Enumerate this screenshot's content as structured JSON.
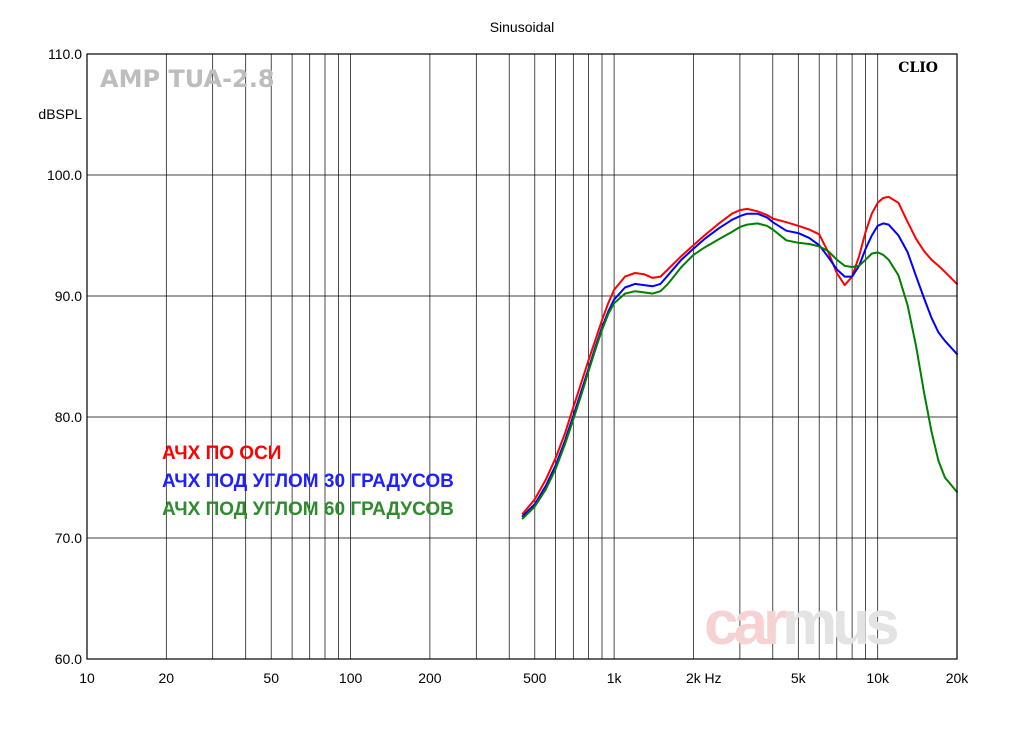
{
  "chart_data": {
    "type": "line",
    "title": "Sinusoidal",
    "ylabel": "dBSPL",
    "xlabel": "Hz",
    "x_scale": "log",
    "xlim": [
      10,
      20000
    ],
    "ylim": [
      60,
      110
    ],
    "grid": true,
    "x_ticks": [
      {
        "value": 10,
        "label": "10"
      },
      {
        "value": 20,
        "label": "20"
      },
      {
        "value": 50,
        "label": "50"
      },
      {
        "value": 100,
        "label": "100"
      },
      {
        "value": 200,
        "label": "200"
      },
      {
        "value": 500,
        "label": "500"
      },
      {
        "value": 1000,
        "label": "1k"
      },
      {
        "value": 2000,
        "label": "2k"
      },
      {
        "value": 5000,
        "label": "5k"
      },
      {
        "value": 10000,
        "label": "10k"
      },
      {
        "value": 20000,
        "label": "20k"
      }
    ],
    "y_ticks": [
      {
        "value": 60,
        "label": "60.0"
      },
      {
        "value": 70,
        "label": "70.0"
      },
      {
        "value": 80,
        "label": "80.0"
      },
      {
        "value": 90,
        "label": "90.0"
      },
      {
        "value": 100,
        "label": "100.0"
      },
      {
        "value": 110,
        "label": "110.0"
      }
    ],
    "series": [
      {
        "name": "АЧХ ПО ОСИ",
        "color": "#ff0000",
        "x": [
          450,
          500,
          550,
          600,
          650,
          700,
          750,
          800,
          850,
          900,
          950,
          1000,
          1100,
          1200,
          1300,
          1400,
          1500,
          1600,
          1800,
          2000,
          2200,
          2500,
          2800,
          3000,
          3200,
          3500,
          3800,
          4000,
          4500,
          5000,
          5500,
          6000,
          6500,
          7000,
          7500,
          8000,
          8500,
          9000,
          9500,
          10000,
          10500,
          11000,
          12000,
          13000,
          14000,
          15000,
          16000,
          17000,
          18000,
          20000
        ],
        "y": [
          72.0,
          73.2,
          74.8,
          76.6,
          78.6,
          80.8,
          82.8,
          84.7,
          86.4,
          88.0,
          89.4,
          90.5,
          91.6,
          91.9,
          91.8,
          91.5,
          91.6,
          92.2,
          93.3,
          94.2,
          95.0,
          96.0,
          96.8,
          97.1,
          97.2,
          97.0,
          96.7,
          96.4,
          96.1,
          95.8,
          95.5,
          95.1,
          93.6,
          91.9,
          90.9,
          91.6,
          93.3,
          95.3,
          96.8,
          97.7,
          98.1,
          98.2,
          97.7,
          96.1,
          94.7,
          93.7,
          93.0,
          92.5,
          92.0,
          91.0
        ]
      },
      {
        "name": "АЧХ ПОД УГЛОМ 30 ГРАДУСОВ",
        "color": "#0000ff",
        "x": [
          450,
          500,
          550,
          600,
          650,
          700,
          750,
          800,
          850,
          900,
          950,
          1000,
          1100,
          1200,
          1300,
          1400,
          1500,
          1600,
          1800,
          2000,
          2200,
          2500,
          2800,
          3000,
          3200,
          3500,
          3800,
          4000,
          4500,
          5000,
          5500,
          6000,
          6500,
          7000,
          7500,
          8000,
          8500,
          9000,
          9500,
          10000,
          10500,
          11000,
          12000,
          13000,
          14000,
          15000,
          16000,
          17000,
          18000,
          20000
        ],
        "y": [
          71.8,
          72.8,
          74.3,
          76.0,
          78.0,
          80.1,
          82.1,
          84.0,
          85.8,
          87.4,
          88.7,
          89.7,
          90.7,
          91.0,
          90.9,
          90.8,
          91.0,
          91.7,
          93.0,
          93.9,
          94.7,
          95.6,
          96.3,
          96.6,
          96.8,
          96.8,
          96.5,
          96.1,
          95.4,
          95.2,
          94.8,
          94.2,
          93.2,
          92.2,
          91.6,
          91.6,
          92.5,
          93.9,
          95.0,
          95.8,
          96.0,
          95.9,
          95.0,
          93.6,
          91.6,
          89.8,
          88.2,
          87.0,
          86.3,
          85.2
        ]
      },
      {
        "name": "АЧХ ПОД УГЛОМ 60 ГРАДУСОВ",
        "color": "#008000",
        "x": [
          450,
          500,
          550,
          600,
          650,
          700,
          750,
          800,
          850,
          900,
          950,
          1000,
          1100,
          1200,
          1300,
          1400,
          1500,
          1600,
          1800,
          2000,
          2200,
          2500,
          2800,
          3000,
          3200,
          3500,
          3800,
          4000,
          4500,
          5000,
          5500,
          6000,
          6500,
          7000,
          7500,
          8000,
          8500,
          9000,
          9500,
          10000,
          10500,
          11000,
          12000,
          13000,
          14000,
          15000,
          16000,
          17000,
          18000,
          20000
        ],
        "y": [
          71.6,
          72.6,
          74.0,
          75.7,
          77.7,
          79.8,
          81.8,
          83.8,
          85.6,
          87.2,
          88.5,
          89.4,
          90.2,
          90.4,
          90.3,
          90.2,
          90.4,
          91.0,
          92.4,
          93.4,
          94.0,
          94.7,
          95.3,
          95.7,
          95.9,
          96.0,
          95.8,
          95.5,
          94.6,
          94.4,
          94.3,
          94.1,
          93.7,
          93.0,
          92.5,
          92.4,
          92.5,
          93.0,
          93.5,
          93.6,
          93.4,
          93.0,
          91.7,
          89.2,
          85.8,
          82.0,
          78.8,
          76.4,
          75.0,
          73.8
        ]
      }
    ],
    "legend": {
      "placement": "lower-left",
      "entries": [
        {
          "label": "АЧХ ПО ОСИ",
          "color": "#ff0000"
        },
        {
          "label": "АЧХ ПОД УГЛОМ 30 ГРАДУСОВ",
          "color": "#2020ff"
        },
        {
          "label": "АЧХ ПОД УГЛОМ 60 ГРАДУСОВ",
          "color": "#2e8b2e"
        }
      ]
    },
    "annotations": {
      "model": "AMP TUA-2.8",
      "software": "CLIO",
      "watermark_part1": "car",
      "watermark_part2": "mus",
      "watermark_color1": "#f6d2d2",
      "watermark_color2": "#e3e3e3"
    }
  }
}
